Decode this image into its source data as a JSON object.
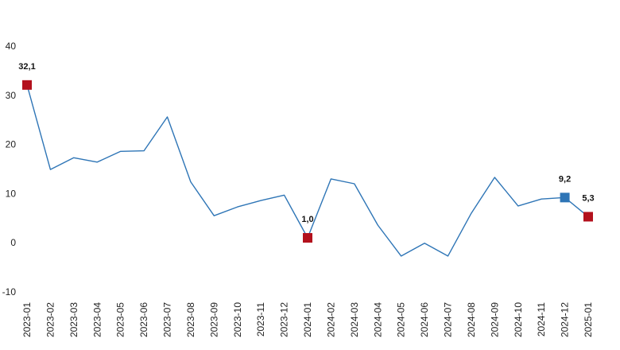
{
  "chart_data": {
    "type": "line",
    "title": "",
    "xlabel": "",
    "ylabel": "",
    "ylim": [
      -10,
      40
    ],
    "yticks": [
      -10,
      0,
      10,
      20,
      30,
      40
    ],
    "grid": false,
    "legend": "none",
    "x": [
      "2023-01",
      "2023-02",
      "2023-03",
      "2023-04",
      "2023-05",
      "2023-06",
      "2023-07",
      "2023-08",
      "2023-09",
      "2023-10",
      "2023-11",
      "2023-12",
      "2024-01",
      "2024-02",
      "2024-03",
      "2024-04",
      "2024-05",
      "2024-06",
      "2024-07",
      "2024-08",
      "2024-09",
      "2024-10",
      "2024-11",
      "2024-12",
      "2025-01"
    ],
    "series": [
      {
        "color": "#2e75b6",
        "values": [
          32.1,
          14.9,
          17.3,
          16.4,
          18.6,
          18.7,
          25.6,
          12.4,
          5.5,
          7.3,
          8.6,
          9.7,
          1.0,
          13.0,
          12.0,
          3.6,
          -2.7,
          -0.1,
          -2.7,
          6.0,
          13.3,
          7.5,
          8.9,
          9.2,
          5.3
        ]
      }
    ],
    "highlights": [
      {
        "x": "2023-01",
        "value": 32.1,
        "label": "32,1",
        "color": "#b3111d"
      },
      {
        "x": "2024-01",
        "value": 1.0,
        "label": "1,0",
        "color": "#b3111d"
      },
      {
        "x": "2024-12",
        "value": 9.2,
        "label": "9,2",
        "color": "#2e75b6"
      },
      {
        "x": "2025-01",
        "value": 5.3,
        "label": "5,3",
        "color": "#b3111d"
      }
    ],
    "colors": {
      "line": "#2e75b6",
      "axis": "#888888",
      "text": "#222222"
    }
  }
}
